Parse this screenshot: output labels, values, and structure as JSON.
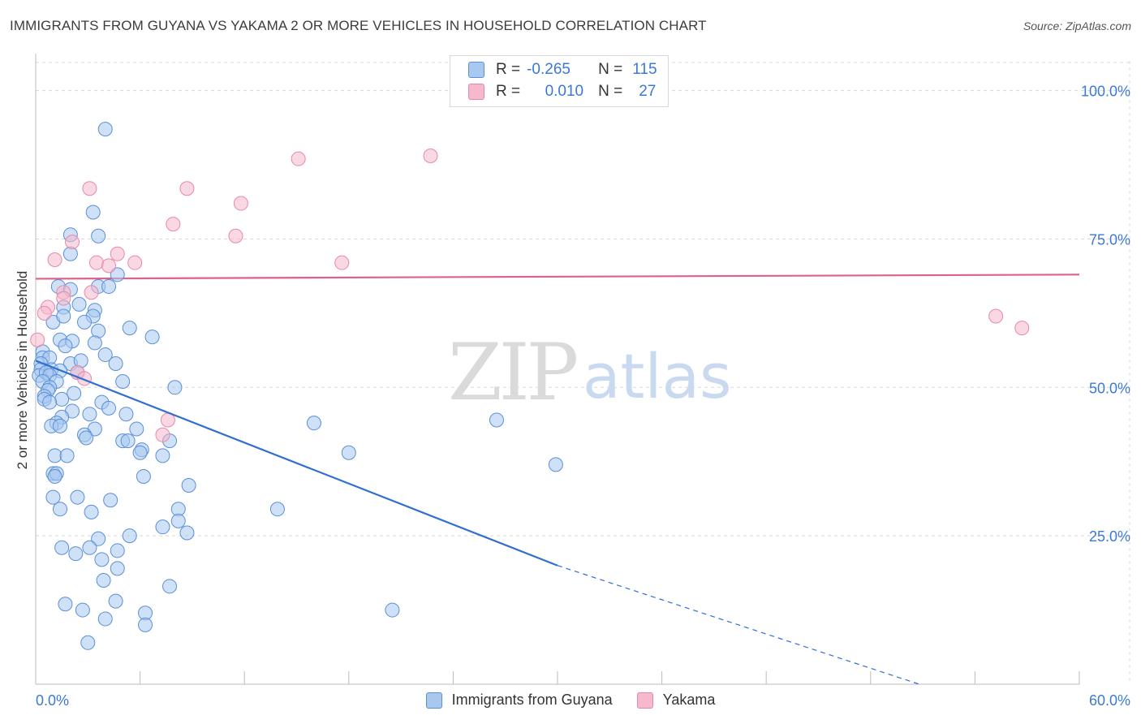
{
  "header": {
    "title": "IMMIGRANTS FROM GUYANA VS YAKAMA 2 OR MORE VEHICLES IN HOUSEHOLD CORRELATION CHART",
    "source": "Source: ZipAtlas.com"
  },
  "watermark": {
    "zip": "ZIP",
    "atlas": "atlas"
  },
  "legend": {
    "rows": [
      {
        "r_label": "R =",
        "r_value": "-0.265",
        "n_label": "N =",
        "n_value": "115",
        "color": "#a8c8f0"
      },
      {
        "r_label": "R =",
        "r_value": "0.010",
        "n_label": "N =",
        "n_value": "27",
        "color": "#f6b8cc"
      }
    ]
  },
  "colors": {
    "guyana_fill": "#a8c8f0",
    "guyana_stroke": "#5a8fd8",
    "guyana_line": "#2f6fd0",
    "yakama_fill": "#f6b8cc",
    "yakama_stroke": "#e888a8",
    "yakama_line": "#e0608a",
    "tick_label": "#3b78d8",
    "grid": "#d8d8d8"
  },
  "chart_data": {
    "type": "scatter",
    "title": "IMMIGRANTS FROM GUYANA VS YAKAMA 2 OR MORE VEHICLES IN HOUSEHOLD CORRELATION CHART",
    "xlabel": "",
    "ylabel": "2 or more Vehicles in Household",
    "xlim": [
      0,
      60
    ],
    "ylim": [
      0,
      105
    ],
    "x_tick_labels": [
      "0.0%",
      "60.0%"
    ],
    "y_ticks": [
      25,
      50,
      75,
      100
    ],
    "y_tick_labels": [
      "25.0%",
      "50.0%",
      "75.0%",
      "100.0%"
    ],
    "grid": true,
    "legend_placement": "top-center",
    "series": [
      {
        "name": "Immigrants from Guyana",
        "trend": {
          "x": [
            0,
            30
          ],
          "y": [
            54.5,
            20.0
          ],
          "dashed_extension": {
            "x": [
              30,
              50.8
            ],
            "y": [
              20.0,
              -4.0
            ]
          }
        },
        "points": [
          [
            4.0,
            93.5
          ],
          [
            3.3,
            79.5
          ],
          [
            3.6,
            75.5
          ],
          [
            2.0,
            75.7
          ],
          [
            2.0,
            72.5
          ],
          [
            4.7,
            69.0
          ],
          [
            1.3,
            67.0
          ],
          [
            2.0,
            66.5
          ],
          [
            3.6,
            67.0
          ],
          [
            4.2,
            67.0
          ],
          [
            1.6,
            63.5
          ],
          [
            2.5,
            64.0
          ],
          [
            3.4,
            63.0
          ],
          [
            1.0,
            61.0
          ],
          [
            1.6,
            62.0
          ],
          [
            3.3,
            62.0
          ],
          [
            2.8,
            61.0
          ],
          [
            3.6,
            59.5
          ],
          [
            5.4,
            60.0
          ],
          [
            6.7,
            58.5
          ],
          [
            1.4,
            58.0
          ],
          [
            2.1,
            57.8
          ],
          [
            1.7,
            57.0
          ],
          [
            3.4,
            57.5
          ],
          [
            0.4,
            56.0
          ],
          [
            0.4,
            55.0
          ],
          [
            0.8,
            55.0
          ],
          [
            4.0,
            55.5
          ],
          [
            0.3,
            54.0
          ],
          [
            2.0,
            54.0
          ],
          [
            2.6,
            54.5
          ],
          [
            4.6,
            54.0
          ],
          [
            0.3,
            53.0
          ],
          [
            0.9,
            53.0
          ],
          [
            1.4,
            52.8
          ],
          [
            2.4,
            52.5
          ],
          [
            0.2,
            52.0
          ],
          [
            0.6,
            52.5
          ],
          [
            0.8,
            52.0
          ],
          [
            5.0,
            51.0
          ],
          [
            0.4,
            51.0
          ],
          [
            1.2,
            51.0
          ],
          [
            0.8,
            50.0
          ],
          [
            0.7,
            49.5
          ],
          [
            2.2,
            49.0
          ],
          [
            0.5,
            48.5
          ],
          [
            8.0,
            50.0
          ],
          [
            0.5,
            48.0
          ],
          [
            1.5,
            48.0
          ],
          [
            0.8,
            47.5
          ],
          [
            3.8,
            47.5
          ],
          [
            4.2,
            46.5
          ],
          [
            2.1,
            46.0
          ],
          [
            3.1,
            45.5
          ],
          [
            5.2,
            45.5
          ],
          [
            1.5,
            45.0
          ],
          [
            1.2,
            44.0
          ],
          [
            0.9,
            43.5
          ],
          [
            1.4,
            43.5
          ],
          [
            3.4,
            43.0
          ],
          [
            5.8,
            43.0
          ],
          [
            2.8,
            42.0
          ],
          [
            2.9,
            41.5
          ],
          [
            5.0,
            41.0
          ],
          [
            5.3,
            41.0
          ],
          [
            7.7,
            41.0
          ],
          [
            6.1,
            39.5
          ],
          [
            6.0,
            39.0
          ],
          [
            1.1,
            38.5
          ],
          [
            1.8,
            38.5
          ],
          [
            7.3,
            38.5
          ],
          [
            1.0,
            35.5
          ],
          [
            1.2,
            35.5
          ],
          [
            1.1,
            35.0
          ],
          [
            6.2,
            35.0
          ],
          [
            8.8,
            33.5
          ],
          [
            1.0,
            31.5
          ],
          [
            2.4,
            31.5
          ],
          [
            4.3,
            31.0
          ],
          [
            1.4,
            29.5
          ],
          [
            3.2,
            29.0
          ],
          [
            8.2,
            29.5
          ],
          [
            13.9,
            29.5
          ],
          [
            8.2,
            27.5
          ],
          [
            7.3,
            26.5
          ],
          [
            8.7,
            25.5
          ],
          [
            5.4,
            25.0
          ],
          [
            3.6,
            24.5
          ],
          [
            1.5,
            23.0
          ],
          [
            3.1,
            23.0
          ],
          [
            4.7,
            22.5
          ],
          [
            2.3,
            22.0
          ],
          [
            3.8,
            21.0
          ],
          [
            4.7,
            19.5
          ],
          [
            3.9,
            17.5
          ],
          [
            7.7,
            16.5
          ],
          [
            1.7,
            13.5
          ],
          [
            4.6,
            14.0
          ],
          [
            2.7,
            12.5
          ],
          [
            6.3,
            12.0
          ],
          [
            4.0,
            11.0
          ],
          [
            6.3,
            10.0
          ],
          [
            3.0,
            7.0
          ],
          [
            20.5,
            12.5
          ],
          [
            16.0,
            44.0
          ],
          [
            18.0,
            39.0
          ],
          [
            26.5,
            44.5
          ],
          [
            29.9,
            37.0
          ]
        ]
      },
      {
        "name": "Yakama",
        "trend": {
          "x": [
            0,
            60
          ],
          "y": [
            68.3,
            69.0
          ]
        },
        "points": [
          [
            15.1,
            88.5
          ],
          [
            22.7,
            89.0
          ],
          [
            3.1,
            83.5
          ],
          [
            8.7,
            83.5
          ],
          [
            11.8,
            81.0
          ],
          [
            7.9,
            77.5
          ],
          [
            11.5,
            75.5
          ],
          [
            2.1,
            74.5
          ],
          [
            1.1,
            71.5
          ],
          [
            3.5,
            71.0
          ],
          [
            4.2,
            70.5
          ],
          [
            4.7,
            72.5
          ],
          [
            5.7,
            71.0
          ],
          [
            17.6,
            71.0
          ],
          [
            1.6,
            66.0
          ],
          [
            1.6,
            65.0
          ],
          [
            3.2,
            66.0
          ],
          [
            0.7,
            63.5
          ],
          [
            0.5,
            62.5
          ],
          [
            55.2,
            62.0
          ],
          [
            56.7,
            60.0
          ],
          [
            0.1,
            58.0
          ],
          [
            2.4,
            52.5
          ],
          [
            2.8,
            51.5
          ],
          [
            7.6,
            44.5
          ],
          [
            7.3,
            42.0
          ]
        ]
      }
    ]
  }
}
